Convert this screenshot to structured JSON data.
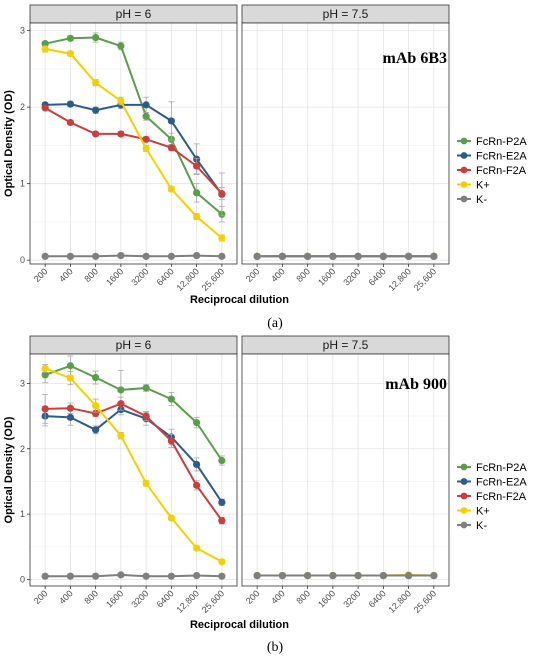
{
  "chart_data": [
    {
      "type": "line",
      "caption": "(a)",
      "annotation": "mAb 6B3",
      "panels": [
        "pH = 6",
        "pH = 7.5"
      ],
      "xlabel": "Reciprocal dilution",
      "ylabel": "Optical Density (OD)",
      "categories": [
        "200",
        "400",
        "800",
        "1600",
        "3200",
        "6400",
        "12,800",
        "25,600"
      ],
      "ylim": [
        -0.05,
        3.1
      ],
      "yticks": [
        0,
        1,
        2,
        3
      ],
      "grid": true,
      "legend_position": "right",
      "series": [
        {
          "name": "FcRn-P2A",
          "color": "#5a9e4b",
          "values": {
            "pH = 6": [
              2.83,
              2.9,
              2.91,
              2.8,
              1.88,
              1.58,
              0.88,
              0.6
            ],
            "pH = 7.5": [
              0.05,
              0.05,
              0.05,
              0.05,
              0.05,
              0.05,
              0.05,
              0.05
            ]
          }
        },
        {
          "name": "FcRn-E2A",
          "color": "#2e5c8a",
          "values": {
            "pH = 6": [
              2.03,
              2.04,
              1.96,
              2.03,
              2.03,
              1.82,
              1.32,
              0.86
            ],
            "pH = 7.5": [
              0.05,
              0.05,
              0.05,
              0.05,
              0.05,
              0.05,
              0.05,
              0.05
            ]
          }
        },
        {
          "name": "FcRn-F2A",
          "color": "#cc3d3d",
          "values": {
            "pH = 6": [
              1.99,
              1.8,
              1.65,
              1.65,
              1.58,
              1.47,
              1.23,
              0.87
            ],
            "pH = 7.5": [
              0.05,
              0.05,
              0.05,
              0.05,
              0.05,
              0.05,
              0.05,
              0.05
            ]
          }
        },
        {
          "name": "K+",
          "color": "#f5d000",
          "values": {
            "pH = 6": [
              2.76,
              2.7,
              2.32,
              2.08,
              1.46,
              0.93,
              0.57,
              0.29
            ],
            "pH = 7.5": [
              0.05,
              0.05,
              0.05,
              0.05,
              0.05,
              0.05,
              0.05,
              0.05
            ]
          }
        },
        {
          "name": "K-",
          "color": "#7f7f7f",
          "values": {
            "pH = 6": [
              0.05,
              0.05,
              0.05,
              0.06,
              0.05,
              0.05,
              0.06,
              0.05
            ],
            "pH = 7.5": [
              0.05,
              0.05,
              0.05,
              0.05,
              0.05,
              0.05,
              0.05,
              0.05
            ]
          }
        }
      ]
    },
    {
      "type": "line",
      "caption": "(b)",
      "annotation": "mAb 900",
      "panels": [
        "pH = 6",
        "pH = 7.5"
      ],
      "xlabel": "Reciprocal dilution",
      "ylabel": "Optical Density (OD)",
      "categories": [
        "200",
        "400",
        "800",
        "1600",
        "3200",
        "6400",
        "12,800",
        "25,600"
      ],
      "ylim": [
        -0.1,
        3.45
      ],
      "yticks": [
        0,
        1,
        2,
        3
      ],
      "grid": true,
      "legend_position": "right",
      "series": [
        {
          "name": "FcRn-P2A",
          "color": "#5a9e4b",
          "values": {
            "pH = 6": [
              3.13,
              3.27,
              3.09,
              2.9,
              2.93,
              2.76,
              2.4,
              1.82
            ],
            "pH = 7.5": [
              0.06,
              0.06,
              0.06,
              0.06,
              0.06,
              0.06,
              0.06,
              0.06
            ]
          }
        },
        {
          "name": "FcRn-E2A",
          "color": "#2e5c8a",
          "values": {
            "pH = 6": [
              2.5,
              2.48,
              2.29,
              2.6,
              2.46,
              2.18,
              1.76,
              1.18
            ],
            "pH = 7.5": [
              0.06,
              0.06,
              0.06,
              0.06,
              0.06,
              0.06,
              0.06,
              0.06
            ]
          }
        },
        {
          "name": "FcRn-F2A",
          "color": "#cc3d3d",
          "values": {
            "pH = 6": [
              2.61,
              2.62,
              2.54,
              2.69,
              2.5,
              2.12,
              1.44,
              0.9
            ],
            "pH = 7.5": [
              0.06,
              0.06,
              0.06,
              0.06,
              0.06,
              0.06,
              0.06,
              0.06
            ]
          }
        },
        {
          "name": "K+",
          "color": "#f5d000",
          "values": {
            "pH = 6": [
              3.23,
              3.08,
              2.66,
              2.2,
              1.47,
              0.94,
              0.48,
              0.27
            ],
            "pH = 7.5": [
              0.06,
              0.06,
              0.06,
              0.06,
              0.06,
              0.06,
              0.07,
              0.06
            ]
          }
        },
        {
          "name": "K-",
          "color": "#7f7f7f",
          "values": {
            "pH = 6": [
              0.05,
              0.05,
              0.05,
              0.07,
              0.05,
              0.05,
              0.06,
              0.05
            ],
            "pH = 7.5": [
              0.06,
              0.06,
              0.06,
              0.06,
              0.06,
              0.06,
              0.06,
              0.06
            ]
          }
        }
      ]
    }
  ]
}
